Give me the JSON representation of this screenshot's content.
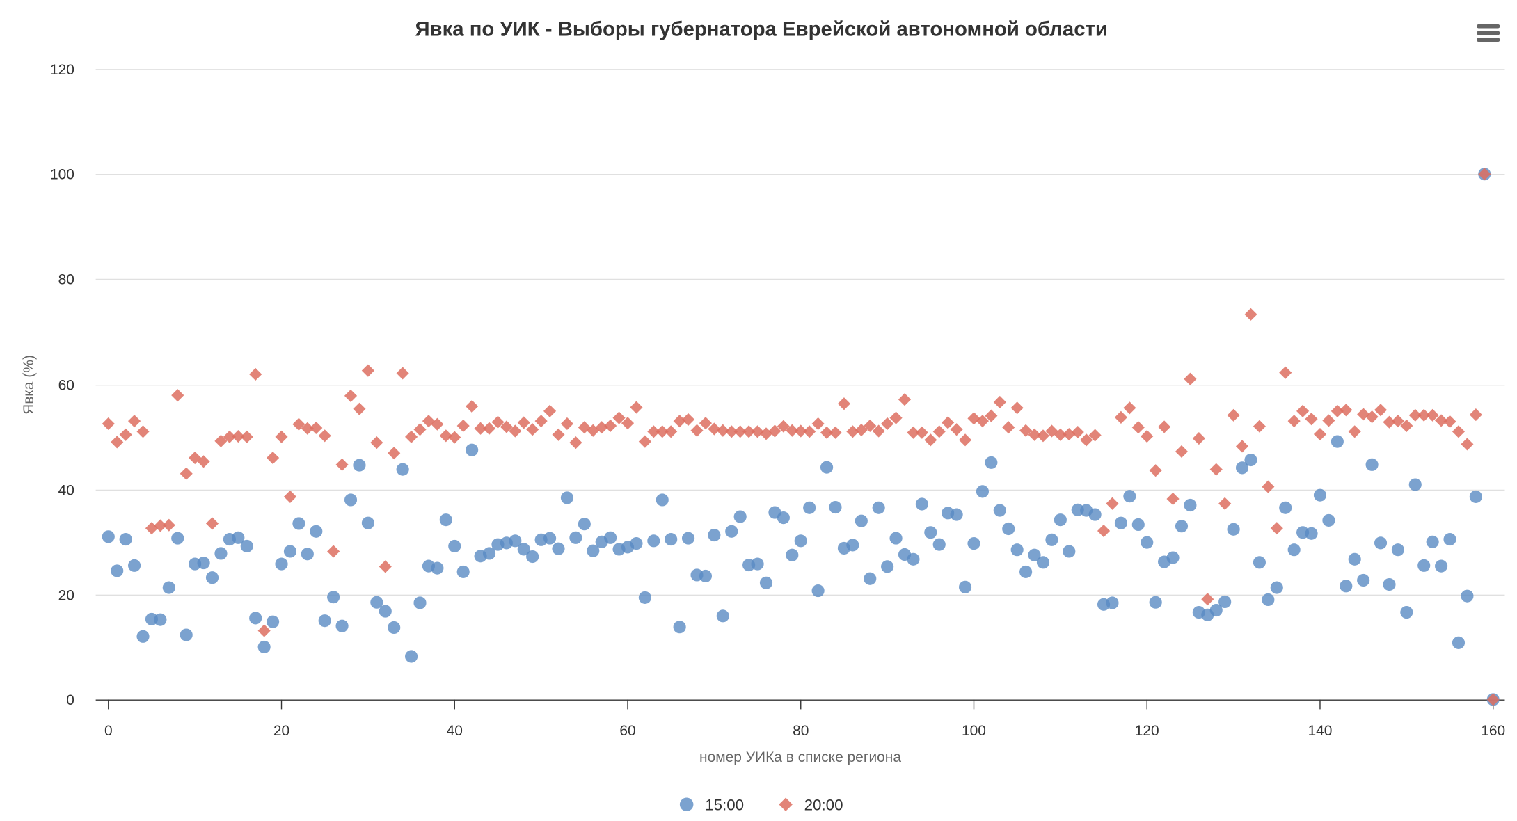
{
  "chart_data": {
    "type": "scatter",
    "title": "Явка по УИК - Выборы губернатора Еврейской автономной области",
    "xlabel": "номер УИКа в списке региона",
    "ylabel": "Явка (%)",
    "xlim": [
      0,
      160
    ],
    "ylim": [
      0,
      120
    ],
    "x_ticks": [
      "0",
      "20",
      "40",
      "60",
      "80",
      "100",
      "120",
      "140",
      "160"
    ],
    "y_ticks": [
      "0",
      "20",
      "40",
      "60",
      "80",
      "100",
      "120"
    ],
    "grid": "horizontal",
    "legend_position": "bottom-center",
    "series": [
      {
        "name": "15:00",
        "marker": "circle",
        "color": "#5a8bc3",
        "values": [
          31,
          24.5,
          30.5,
          25.5,
          12,
          15.3,
          15.2,
          21.3,
          30.7,
          12.3,
          25.8,
          26,
          23.2,
          27.8,
          30.5,
          30.8,
          29.2,
          15.5,
          10,
          14.8,
          25.8,
          28.2,
          33.5,
          27.7,
          32,
          15,
          19.5,
          14,
          38,
          44.6,
          33.6,
          18.5,
          16.8,
          13.7,
          43.8,
          8.2,
          18.4,
          25.4,
          25,
          34.2,
          29.2,
          24.3,
          47.5,
          27.3,
          27.8,
          29.5,
          29.8,
          30.2,
          28.6,
          27.2,
          30.4,
          30.7,
          28.7,
          38.4,
          30.8,
          33.4,
          28.3,
          30,
          30.8,
          28.6,
          29,
          29.7,
          19.4,
          30.2,
          38,
          30.5,
          13.8,
          30.7,
          23.7,
          23.5,
          31.3,
          15.9,
          32,
          34.8,
          25.6,
          25.8,
          22.2,
          35.6,
          34.6,
          27.5,
          30.2,
          36.5,
          20.7,
          44.2,
          36.6,
          28.8,
          29.4,
          34,
          23,
          36.5,
          25.3,
          30.7,
          27.6,
          26.7,
          37.2,
          31.8,
          29.5,
          35.5,
          35.2,
          21.4,
          29.7,
          39.6,
          45.1,
          36,
          32.5,
          28.5,
          24.3,
          27.5,
          26.1,
          30.4,
          34.2,
          28.2,
          36.1,
          36,
          35.2,
          18.1,
          18.4,
          33.6,
          38.7,
          33.3,
          29.9,
          18.5,
          26.2,
          27,
          33,
          37,
          16.6,
          16.1,
          17,
          18.6,
          32.4,
          44.1,
          45.6,
          26.1,
          19,
          21.3,
          36.5,
          28.5,
          31.8,
          31.6,
          38.9,
          34.1,
          49.1,
          21.6,
          26.7,
          22.7,
          44.7,
          29.8,
          21.9,
          28.5,
          16.6,
          40.9,
          25.5,
          30,
          25.4,
          30.5,
          10.8,
          19.7,
          38.6,
          100,
          0
        ]
      },
      {
        "name": "20:00",
        "marker": "diamond",
        "color": "#dd6f60",
        "values": [
          52.5,
          49,
          50.4,
          53,
          51,
          32.6,
          33.1,
          33.2,
          57.9,
          43,
          46,
          45.3,
          33.5,
          49.2,
          50,
          50.1,
          50,
          61.9,
          13.1,
          46,
          50,
          38.6,
          52.4,
          51.6,
          51.7,
          50.2,
          28.2,
          44.7,
          57.8,
          55.3,
          62.6,
          48.9,
          25.3,
          46.9,
          62.1,
          50,
          51.4,
          53,
          52.4,
          50.2,
          49.9,
          52.1,
          55.8,
          51.6,
          51.6,
          52.8,
          51.9,
          51.1,
          52.7,
          51.4,
          53,
          54.9,
          50.4,
          52.5,
          48.9,
          51.8,
          51.2,
          51.8,
          52.1,
          53.6,
          52.6,
          55.6,
          49.1,
          51,
          51,
          51,
          53,
          53.3,
          51.2,
          52.6,
          51.5,
          51.2,
          51,
          51,
          51,
          51,
          50.6,
          51.1,
          52,
          51.2,
          51.1,
          51,
          52.5,
          50.8,
          50.8,
          56.3,
          51,
          51.3,
          52.1,
          51.1,
          52.5,
          53.6,
          57.1,
          50.8,
          50.8,
          49.4,
          51,
          52.7,
          51.4,
          49.4,
          53.5,
          53,
          54,
          56.6,
          51.8,
          55.5,
          51.2,
          50.4,
          50.2,
          51.1,
          50.4,
          50.5,
          50.9,
          49.4,
          50.3,
          32.1,
          37.3,
          53.7,
          55.5,
          51.8,
          50.1,
          43.6,
          51.9,
          38.2,
          47.2,
          61,
          49.7,
          19.1,
          43.8,
          37.3,
          54.1,
          48.2,
          73.3,
          52,
          40.5,
          32.6,
          62.2,
          53,
          54.9,
          53.4,
          50.5,
          53.1,
          54.9,
          55.1,
          51,
          54.3,
          53.8,
          55.1,
          52.8,
          53,
          52.1,
          54.1,
          54.1,
          54.1,
          53.1,
          52.9,
          51,
          48.6,
          54.2,
          100,
          0
        ]
      }
    ]
  }
}
